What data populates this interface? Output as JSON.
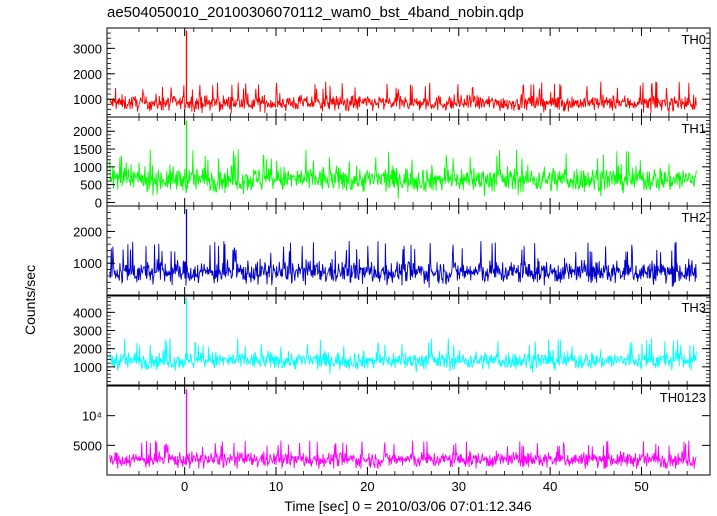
{
  "chart_data": {
    "type": "line",
    "title": "ae504050010_20100306070112_wam0_bst_4band_nobin.qdp",
    "ylabel": "Counts/sec",
    "xlabel": "Time [sec] 0 = 2010/03/06 07:01:12.346",
    "xlim": [
      -8.5,
      57.5
    ],
    "x_ticks": [
      0,
      10,
      20,
      30,
      40,
      50
    ],
    "panels": [
      {
        "name": "TH0",
        "color": "#ff0000",
        "scale": "linear",
        "ylim": [
          300,
          3800
        ],
        "y_ticks": [
          {
            "value": 1000,
            "label": "1000"
          },
          {
            "value": 2000,
            "label": "2000"
          },
          {
            "value": 3000,
            "label": "3000"
          }
        ],
        "baseline": 850,
        "noise_range": [
          450,
          1700
        ],
        "spike": {
          "x": 0.2,
          "y": 3700
        }
      },
      {
        "name": "TH1",
        "color": "#00ff00",
        "scale": "linear",
        "ylim": [
          -100,
          2400
        ],
        "y_ticks": [
          {
            "value": 0,
            "label": "0"
          },
          {
            "value": 500,
            "label": "500"
          },
          {
            "value": 1000,
            "label": "1000"
          },
          {
            "value": 1500,
            "label": "1500"
          },
          {
            "value": 2000,
            "label": "2000"
          }
        ],
        "baseline": 650,
        "noise_range": [
          50,
          1500
        ],
        "spike": {
          "x": 0.2,
          "y": 2300
        }
      },
      {
        "name": "TH2",
        "color": "#0000cc",
        "scale": "linear",
        "ylim": [
          0,
          2800
        ],
        "y_ticks": [
          {
            "value": 1000,
            "label": "1000"
          },
          {
            "value": 2000,
            "label": "2000"
          }
        ],
        "baseline": 720,
        "noise_range": [
          200,
          1700
        ],
        "spike": {
          "x": 0.2,
          "y": 2700
        }
      },
      {
        "name": "TH3",
        "color": "#00ffff",
        "scale": "linear",
        "ylim": [
          0,
          4900
        ],
        "y_ticks": [
          {
            "value": 1000,
            "label": "1000"
          },
          {
            "value": 2000,
            "label": "2000"
          },
          {
            "value": 3000,
            "label": "3000"
          },
          {
            "value": 4000,
            "label": "4000"
          }
        ],
        "baseline": 1350,
        "noise_range": [
          600,
          2600
        ],
        "spike": {
          "x": 0.2,
          "y": 4800
        }
      },
      {
        "name": "TH0123",
        "color": "#ff00ff",
        "scale": "log",
        "ylim": [
          2500,
          20000
        ],
        "y_ticks": [
          {
            "value": 5000,
            "label": "5000"
          },
          {
            "value": 10000,
            "label": "10⁴"
          }
        ],
        "baseline": 3600,
        "noise_range": [
          2900,
          5600
        ],
        "spike": {
          "x": 0.2,
          "y": 18500
        }
      }
    ]
  }
}
